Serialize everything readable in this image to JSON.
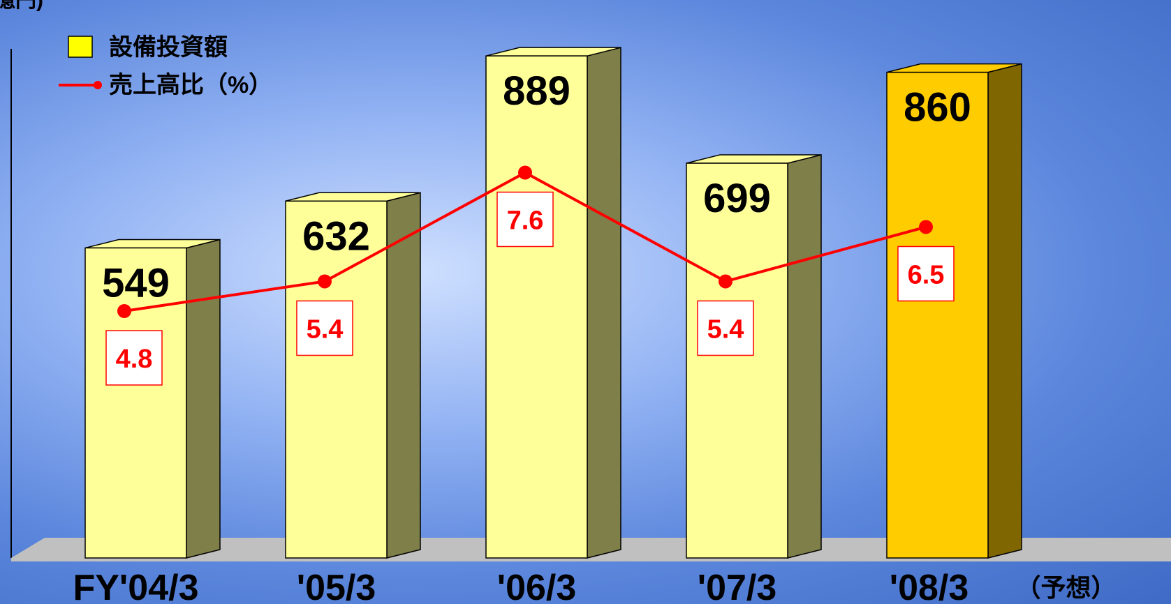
{
  "top_left_fragment": "億円)",
  "legend": {
    "bar_label": "設備投資額",
    "line_label": "売上高比（%）"
  },
  "colors": {
    "bar_normal": "#ffff99",
    "bar_normal_side": "#7f7f4a",
    "bar_forecast": "#ffcc00",
    "bar_forecast_side": "#806600",
    "line": "#ff0000",
    "floor": "#c0c0c0",
    "legend_swatch": "#ffff00"
  },
  "chart_data": {
    "type": "bar",
    "categories": [
      "FY'04/3",
      "'05/3",
      "'06/3",
      "'07/3",
      "'08/3"
    ],
    "category_suffixes": [
      "",
      "",
      "",
      "",
      "（予想）"
    ],
    "series": [
      {
        "name": "設備投資額",
        "type": "bar",
        "values": [
          549,
          632,
          889,
          699,
          860
        ]
      },
      {
        "name": "売上高比（%）",
        "type": "line",
        "values": [
          4.8,
          5.4,
          7.6,
          5.4,
          6.5
        ]
      }
    ],
    "forecast_index": 4,
    "bar_value_labels": [
      "549",
      "632",
      "889",
      "699",
      "860"
    ],
    "line_value_labels": [
      "4.8",
      "5.4",
      "7.6",
      "5.4",
      "6.5"
    ]
  }
}
